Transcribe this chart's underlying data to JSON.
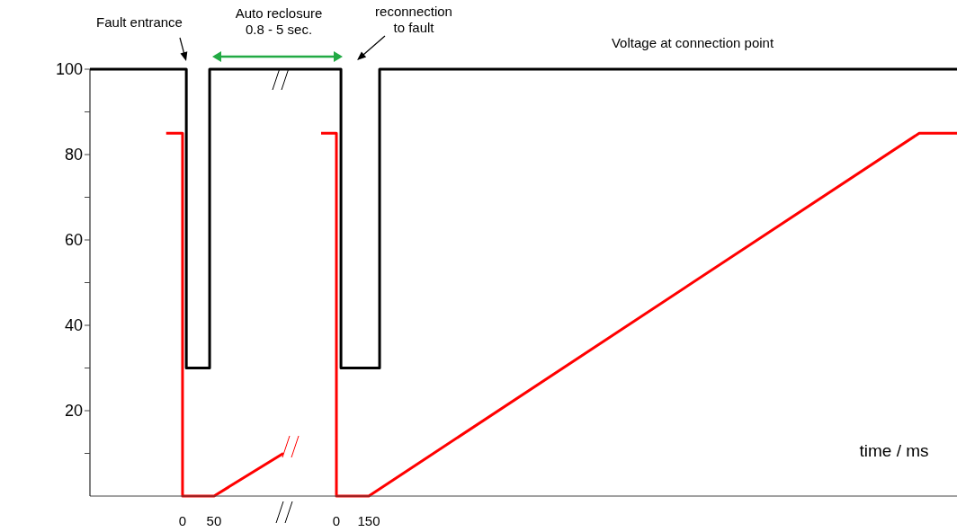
{
  "chart_data": [
    {
      "type": "line",
      "xlim": [
        -147,
        160
      ],
      "xticks": [
        0,
        50
      ],
      "ylim": [
        0,
        100
      ],
      "yticks": [
        {
          "value": 10,
          "label": null
        },
        20,
        {
          "value": 30,
          "label": null
        },
        40,
        {
          "value": 50,
          "label": null
        },
        60,
        {
          "value": 70,
          "label": null
        },
        80,
        {
          "value": 90,
          "label": null
        },
        100
      ],
      "grid": false,
      "legend": false,
      "marker": "none",
      "line_style": "solid",
      "series": [
        {
          "color": "#000000",
          "x": [
            -147,
            6,
            6,
            43,
            43,
            160
          ],
          "values": [
            100,
            100,
            30,
            30,
            100,
            100
          ]
        },
        {
          "color": "#ff0000",
          "x": [
            -26,
            0,
            0,
            50,
            160
          ],
          "values": [
            85,
            85,
            0,
            0,
            10
          ]
        }
      ],
      "annotations": [
        "Fault entrance",
        "Auto reclosure\n0.8 - 5 sec."
      ]
    },
    {
      "type": "line",
      "xlabel": "time / ms",
      "xlim": [
        -246,
        2875
      ],
      "xticks": [
        0,
        150
      ],
      "ylim": [
        0,
        100
      ],
      "tick_labels": "x",
      "grid": false,
      "legend": false,
      "marker": "none",
      "line_style": "solid",
      "series": [
        {
          "name": "Voltage at connection point",
          "color": "#000000",
          "x": [
            -246,
            21,
            21,
            200,
            200,
            2875
          ],
          "values": [
            100,
            100,
            30,
            30,
            100,
            100
          ]
        },
        {
          "color": "#ff0000",
          "x": [
            -71,
            0,
            0,
            150,
            2700,
            2875
          ],
          "values": [
            85,
            85,
            0,
            0,
            85,
            85
          ]
        }
      ],
      "annotations": [
        "reconnection\nto fault"
      ]
    }
  ]
}
